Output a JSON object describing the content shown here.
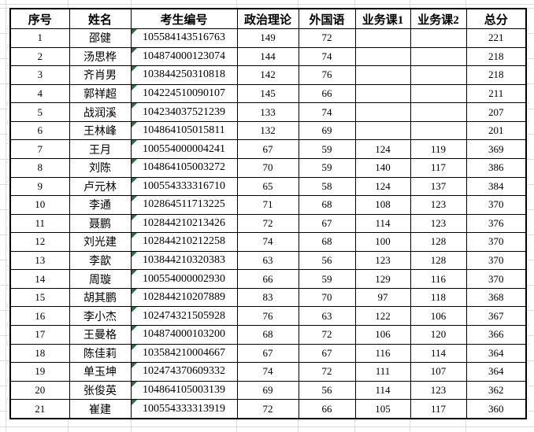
{
  "colors": {
    "table_border": "#000000",
    "sheet_gridline": "#dcdcdc",
    "indicator_green": "#217346"
  },
  "icons": {
    "text_format_indicator": "green-corner-triangle"
  },
  "table": {
    "columns": [
      {
        "key": "index",
        "label": "序号"
      },
      {
        "key": "name",
        "label": "姓名"
      },
      {
        "key": "candidate_no",
        "label": "考生编号"
      },
      {
        "key": "politics",
        "label": "政治理论"
      },
      {
        "key": "foreign_lang",
        "label": "外国语"
      },
      {
        "key": "major1",
        "label": "业务课1"
      },
      {
        "key": "major2",
        "label": "业务课2"
      },
      {
        "key": "total",
        "label": "总分"
      }
    ],
    "rows": [
      {
        "index": "1",
        "name": "邵健",
        "candidate_no": "105584143516763",
        "politics": "149",
        "foreign_lang": "72",
        "major1": "",
        "major2": "",
        "total": "221"
      },
      {
        "index": "2",
        "name": "汤思桦",
        "candidate_no": "104874000123074",
        "politics": "144",
        "foreign_lang": "74",
        "major1": "",
        "major2": "",
        "total": "218"
      },
      {
        "index": "3",
        "name": "齐肖男",
        "candidate_no": "103844250310818",
        "politics": "142",
        "foreign_lang": "76",
        "major1": "",
        "major2": "",
        "total": "218"
      },
      {
        "index": "4",
        "name": "郭祥超",
        "candidate_no": "104224510090107",
        "politics": "145",
        "foreign_lang": "66",
        "major1": "",
        "major2": "",
        "total": "211"
      },
      {
        "index": "5",
        "name": "战润溪",
        "candidate_no": "104234037521239",
        "politics": "133",
        "foreign_lang": "74",
        "major1": "",
        "major2": "",
        "total": "207"
      },
      {
        "index": "6",
        "name": "王林峰",
        "candidate_no": "104864105015811",
        "politics": "132",
        "foreign_lang": "69",
        "major1": "",
        "major2": "",
        "total": "201"
      },
      {
        "index": "7",
        "name": "王月",
        "candidate_no": "100554000004241",
        "politics": "67",
        "foreign_lang": "59",
        "major1": "124",
        "major2": "119",
        "total": "369"
      },
      {
        "index": "8",
        "name": "刘陈",
        "candidate_no": "104864105003272",
        "politics": "70",
        "foreign_lang": "59",
        "major1": "140",
        "major2": "117",
        "total": "386"
      },
      {
        "index": "9",
        "name": "卢元林",
        "candidate_no": "100554333316710",
        "politics": "65",
        "foreign_lang": "58",
        "major1": "124",
        "major2": "137",
        "total": "384"
      },
      {
        "index": "10",
        "name": "李通",
        "candidate_no": "102864511713225",
        "politics": "71",
        "foreign_lang": "68",
        "major1": "108",
        "major2": "123",
        "total": "370"
      },
      {
        "index": "11",
        "name": "聂鹏",
        "candidate_no": "102844210213426",
        "politics": "72",
        "foreign_lang": "67",
        "major1": "114",
        "major2": "123",
        "total": "376"
      },
      {
        "index": "12",
        "name": "刘光建",
        "candidate_no": "102844210212258",
        "politics": "74",
        "foreign_lang": "68",
        "major1": "100",
        "major2": "128",
        "total": "370"
      },
      {
        "index": "13",
        "name": "李歆",
        "candidate_no": "103844210320383",
        "politics": "63",
        "foreign_lang": "56",
        "major1": "123",
        "major2": "128",
        "total": "370"
      },
      {
        "index": "14",
        "name": "周璇",
        "candidate_no": "100554000002930",
        "politics": "66",
        "foreign_lang": "59",
        "major1": "129",
        "major2": "116",
        "total": "370"
      },
      {
        "index": "15",
        "name": "胡其鹏",
        "candidate_no": "102844210207889",
        "politics": "83",
        "foreign_lang": "70",
        "major1": "97",
        "major2": "118",
        "total": "368"
      },
      {
        "index": "16",
        "name": "李小杰",
        "candidate_no": "102474321505928",
        "politics": "76",
        "foreign_lang": "63",
        "major1": "122",
        "major2": "106",
        "total": "367"
      },
      {
        "index": "17",
        "name": "王曼格",
        "candidate_no": "104874000103200",
        "politics": "68",
        "foreign_lang": "72",
        "major1": "106",
        "major2": "120",
        "total": "366"
      },
      {
        "index": "18",
        "name": "陈佳莉",
        "candidate_no": "103584210004667",
        "politics": "67",
        "foreign_lang": "67",
        "major1": "116",
        "major2": "114",
        "total": "364"
      },
      {
        "index": "19",
        "name": "单玉坤",
        "candidate_no": "102474370609332",
        "politics": "74",
        "foreign_lang": "72",
        "major1": "111",
        "major2": "107",
        "total": "364"
      },
      {
        "index": "20",
        "name": "张俊英",
        "candidate_no": "104864105003139",
        "politics": "69",
        "foreign_lang": "56",
        "major1": "114",
        "major2": "123",
        "total": "362"
      },
      {
        "index": "21",
        "name": "崔建",
        "candidate_no": "100554333313919",
        "politics": "72",
        "foreign_lang": "66",
        "major1": "105",
        "major2": "117",
        "total": "360"
      }
    ]
  }
}
